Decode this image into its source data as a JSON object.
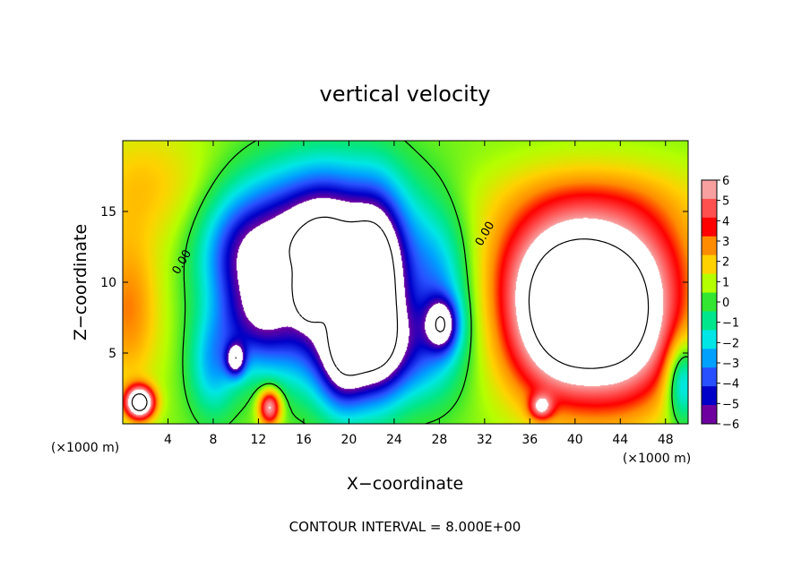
{
  "chart_data": {
    "type": "heatmap",
    "title": "vertical velocity",
    "xlabel": "X−coordinate",
    "ylabel": "Z−coordinate",
    "x_unit_left": "(×1000 m)",
    "x_unit_right": "(×1000 m)",
    "footer": "CONTOUR INTERVAL = 8.000E+00",
    "xlim": [
      0,
      50
    ],
    "ylim": [
      0,
      20
    ],
    "x_ticks": [
      4,
      8,
      12,
      16,
      20,
      24,
      28,
      32,
      36,
      40,
      44,
      48
    ],
    "y_ticks": [
      5,
      10,
      15
    ],
    "colorbar": {
      "range": [
        -6,
        6
      ],
      "ticks": [
        "6",
        "5",
        "4",
        "3",
        "2",
        "1",
        "0",
        "−1",
        "−2",
        "−3",
        "−4",
        "−5",
        "−6"
      ],
      "colors": [
        "#f8a0a0",
        "#ff5050",
        "#ff0000",
        "#ff8c00",
        "#ffd200",
        "#b4ff00",
        "#32e632",
        "#00e68c",
        "#00e6e6",
        "#00a0ff",
        "#2850ff",
        "#0000c8",
        "#6e00a0"
      ]
    },
    "contour_labels": [
      {
        "text": "0.00",
        "x": 5.5,
        "y": 11.3
      },
      {
        "text": "0.00",
        "x": 32.3,
        "y": 13.3
      }
    ],
    "background_level": 0.6,
    "features": [
      {
        "x": 2,
        "y": 17,
        "sx": 4,
        "sy": 3,
        "a": 1.5
      },
      {
        "x": 0.5,
        "y": 8,
        "sx": 2,
        "sy": 4,
        "a": 2.5
      },
      {
        "x": 1.5,
        "y": 1.5,
        "sx": 0.9,
        "sy": 0.8,
        "a": 9
      },
      {
        "x": 13,
        "y": 1.2,
        "sx": 0.7,
        "sy": 0.9,
        "a": 6
      },
      {
        "x": 10,
        "y": 12,
        "sx": 2.5,
        "sy": 3,
        "a": -4
      },
      {
        "x": 14,
        "y": 13,
        "sx": 3,
        "sy": 3.5,
        "a": -5
      },
      {
        "x": 18,
        "y": 13,
        "sx": 2.5,
        "sy": 3.5,
        "a": -5
      },
      {
        "x": 22,
        "y": 12,
        "sx": 3.5,
        "sy": 4,
        "a": -5
      },
      {
        "x": 12,
        "y": 7,
        "sx": 2.5,
        "sy": 2.5,
        "a": -4.5
      },
      {
        "x": 18,
        "y": 6,
        "sx": 3,
        "sy": 3,
        "a": -4
      },
      {
        "x": 24,
        "y": 5,
        "sx": 3,
        "sy": 2.5,
        "a": -4
      },
      {
        "x": 28,
        "y": 9,
        "sx": 2,
        "sy": 4,
        "a": -3
      },
      {
        "x": 8,
        "y": 4,
        "sx": 1.5,
        "sy": 2.5,
        "a": -3
      },
      {
        "x": 16.5,
        "y": 9,
        "sx": 0.8,
        "sy": 1.1,
        "a": -5
      },
      {
        "x": 10,
        "y": 4.5,
        "sx": 0.6,
        "sy": 0.8,
        "a": -5
      },
      {
        "x": 22.5,
        "y": 9,
        "sx": 1.6,
        "sy": 4.5,
        "a": -6
      },
      {
        "x": 19.5,
        "y": 4,
        "sx": 1.5,
        "sy": 2.5,
        "a": -4
      },
      {
        "x": 28.3,
        "y": 7,
        "sx": 1,
        "sy": 1.3,
        "a": -5
      },
      {
        "x": 38.5,
        "y": 7.5,
        "sx": 3.5,
        "sy": 4,
        "a": 8
      },
      {
        "x": 44.5,
        "y": 7,
        "sx": 3.5,
        "sy": 4,
        "a": 7
      },
      {
        "x": 41.5,
        "y": 12,
        "sx": 6,
        "sy": 3,
        "a": 3.5
      },
      {
        "x": 42,
        "y": 16,
        "sx": 7,
        "sy": 2,
        "a": 1.2
      },
      {
        "x": 37,
        "y": 1.2,
        "sx": 0.7,
        "sy": 0.6,
        "a": 4
      },
      {
        "x": 49.5,
        "y": 3,
        "sx": 1,
        "sy": 2,
        "a": -4
      }
    ]
  }
}
